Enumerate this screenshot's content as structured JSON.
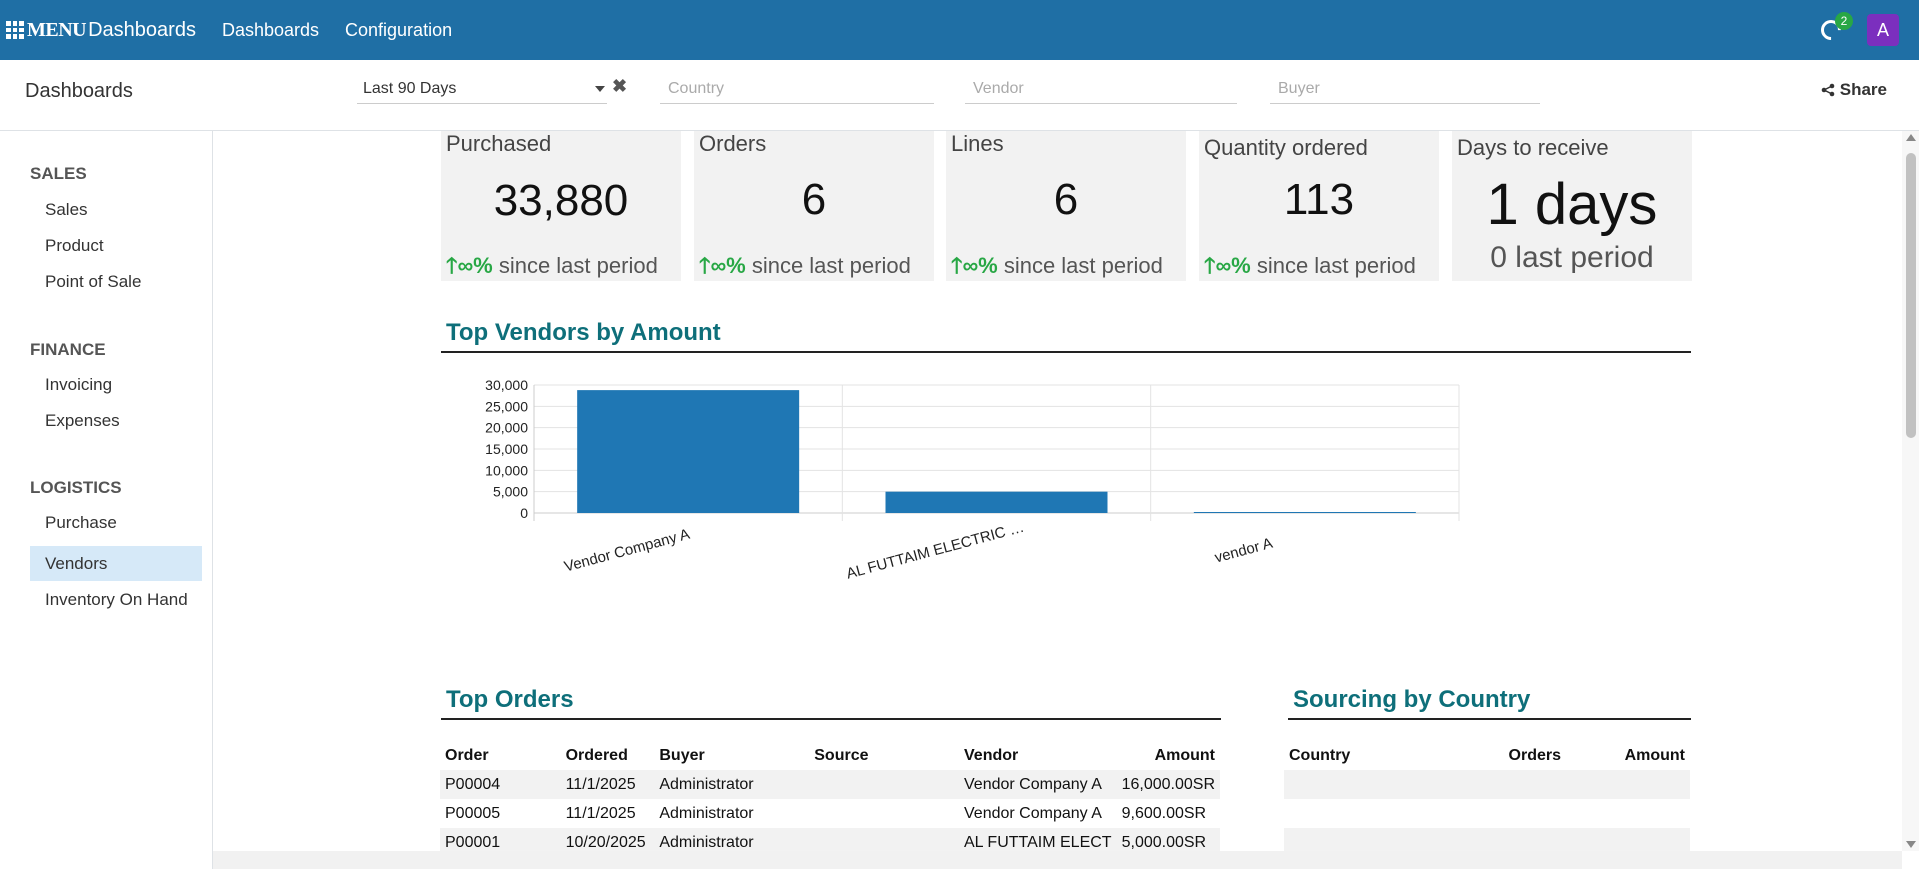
{
  "navbar": {
    "menu_label": "MENU",
    "app_name": "Dashboards",
    "links": [
      "Dashboards",
      "Configuration"
    ],
    "activity_count": "2",
    "avatar_initial": "A",
    "color": "#1f6fa5"
  },
  "controlbar": {
    "title": "Dashboards",
    "date_range": "Last 90 Days",
    "clear_icon": "✖",
    "country_placeholder": "Country",
    "vendor_placeholder": "Vendor",
    "buyer_placeholder": "Buyer",
    "share_label": "Share"
  },
  "sidebar": {
    "sections": [
      {
        "title": "SALES",
        "items": [
          "Sales",
          "Product",
          "Point of Sale"
        ]
      },
      {
        "title": "FINANCE",
        "items": [
          "Invoicing",
          "Expenses"
        ]
      },
      {
        "title": "LOGISTICS",
        "items": [
          "Purchase",
          "Vendors",
          "Inventory On Hand"
        ]
      }
    ],
    "active_item": "Vendors"
  },
  "kpis": [
    {
      "title": "Purchased",
      "value": "33,880",
      "trend_arrow": "🡑",
      "trend_pct": "∞%",
      "trend_text": "since last period"
    },
    {
      "title": "Orders",
      "value": "6",
      "trend_arrow": "🡑",
      "trend_pct": "∞%",
      "trend_text": "since last period"
    },
    {
      "title": "Lines",
      "value": "6",
      "trend_arrow": "🡑",
      "trend_pct": "∞%",
      "trend_text": "since last period"
    },
    {
      "title": "Quantity ordered",
      "value": "113",
      "trend_arrow": "🡑",
      "trend_pct": "∞%",
      "trend_text": "since last period"
    },
    {
      "title": "Days to receive",
      "value": "1 days",
      "previous": "0 last period"
    }
  ],
  "sections": {
    "top_vendors": "Top Vendors by Amount",
    "top_orders": "Top Orders",
    "sourcing": "Sourcing by Country"
  },
  "chart_data": {
    "type": "bar",
    "title": "Top Vendors by Amount",
    "categories": [
      "Vendor Company A",
      "AL FUTTAIM ELECTRIC …",
      "vendor A"
    ],
    "values": [
      28800,
      5000,
      80
    ],
    "yticks": [
      "0",
      "5,000",
      "10,000",
      "15,000",
      "20,000",
      "25,000",
      "30,000"
    ],
    "ylim": [
      0,
      30000
    ],
    "grid": true,
    "color": "#1f77b4"
  },
  "orders_table": {
    "headers": [
      "Order",
      "Ordered",
      "Buyer",
      "Source",
      "Vendor",
      "Amount"
    ],
    "rows": [
      [
        "P00004",
        "11/1/2025",
        "Administrator",
        "",
        "Vendor Company A",
        "16,000.00SR"
      ],
      [
        "P00005",
        "11/1/2025",
        "Administrator",
        "",
        "Vendor Company A",
        "9,600.00SR"
      ],
      [
        "P00001",
        "10/20/2025",
        "Administrator",
        "",
        "AL FUTTAIM ELECT",
        "5,000.00SR"
      ]
    ]
  },
  "country_table": {
    "headers": [
      "Country",
      "Orders",
      "Amount"
    ]
  }
}
